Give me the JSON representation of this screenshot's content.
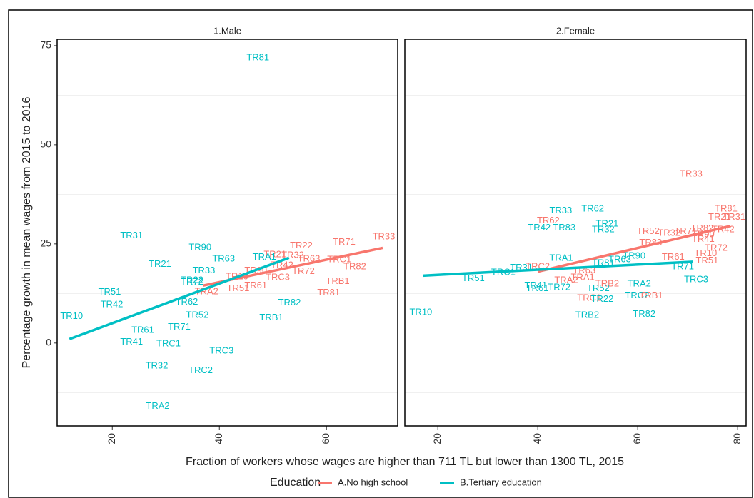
{
  "chart_data": {
    "type": "scatter",
    "ylabel": "Percentage growth in mean wages from 2015 to 2016",
    "xlabel": "Fraction of workers whose wages are higher than 711 TL but lower than 1300 TL, 2015",
    "ylim": [
      -20.9,
      76.6
    ],
    "yticks": [
      0,
      25,
      50,
      75
    ],
    "y_minor_grid": [
      -12.5,
      12.5,
      37.5,
      62.5
    ],
    "legend": {
      "title": "Education",
      "entries": [
        {
          "name": "A.No high school",
          "color": "#F8766D"
        },
        {
          "name": "B.Tertiary education",
          "color": "#00BFC4"
        }
      ]
    },
    "facets": [
      {
        "title": "1.Male",
        "xlim": [
          9.7,
          73.3
        ],
        "xticks": [
          20,
          40,
          60
        ],
        "series": [
          {
            "color": "#F8766D",
            "labels": [
              "TR33",
              "TR71",
              "TR22",
              "TRC1",
              "TR82",
              "TR21",
              "TR32",
              "TR63",
              "TR90",
              "TR42",
              "TR72",
              "TR10",
              "TRC3",
              "TR61",
              "TR51",
              "TRA2",
              "TRB1",
              "TR81"
            ],
            "x": [
              70.7,
              63.3,
              55.3,
              62.4,
              65.3,
              50.4,
              53.7,
              56.7,
              46.8,
              51.7,
              55.7,
              43.3,
              50.9,
              46.8,
              43.5,
              37.6,
              62.1,
              60.4
            ],
            "y": [
              26.8,
              25.4,
              24.5,
              21.0,
              19.2,
              22.3,
              22.1,
              21.2,
              18.2,
              19.6,
              18.0,
              16.7,
              16.5,
              14.4,
              13.7,
              12.9,
              15.5,
              12.6
            ],
            "fit_x": [
              37,
              70.5
            ],
            "fit_y": [
              14.5,
              24
            ]
          },
          {
            "color": "#00BFC4",
            "labels": [
              "TR81",
              "TR31",
              "TR90",
              "TR63",
              "TR21",
              "TR33",
              "TR22",
              "TR72",
              "TRA1",
              "TR51",
              "TR42",
              "TR10",
              "TR62",
              "TR52",
              "TRB1",
              "TR82",
              "TR71",
              "TR61",
              "TR41",
              "TRC1",
              "TRC3",
              "TR32",
              "TRC2",
              "TRA2"
            ],
            "x": [
              47.2,
              23.6,
              36.4,
              40.8,
              28.9,
              37.1,
              34.9,
              34.9,
              48.4,
              19.5,
              19.9,
              12.4,
              33.9,
              35.9,
              49.7,
              53.1,
              32.5,
              25.7,
              23.6,
              30.5,
              40.4,
              28.3,
              36.5,
              28.5
            ],
            "y": [
              71.9,
              27.0,
              24.1,
              21.2,
              19.8,
              18.2,
              15.8,
              15.3,
              21.6,
              12.8,
              9.7,
              6.7,
              10.3,
              7.0,
              6.3,
              10.1,
              4.0,
              3.2,
              0.2,
              -0.2,
              -2.0,
              -5.8,
              -7.0,
              -16.0
            ],
            "fit_x": [
              12,
              53
            ],
            "fit_y": [
              1,
              21.5
            ]
          }
        ]
      },
      {
        "title": "2.Female",
        "xlim": [
          13.4,
          81.7
        ],
        "xticks": [
          20,
          40,
          60,
          80
        ],
        "series": [
          {
            "color": "#F8766D",
            "labels": [
              "TR33",
              "TR81",
              "TR31",
              "TR21",
              "TR42",
              "TR82",
              "TR90",
              "TR71",
              "TR32",
              "TR52",
              "TR41",
              "TR83",
              "TR72",
              "TR10",
              "TR61",
              "TR51",
              "TR62",
              "TRC2",
              "TR63",
              "TRA1",
              "TRA2",
              "TRB2",
              "TRC1",
              "TRB1"
            ],
            "x": [
              70.7,
              77.7,
              79.3,
              76.4,
              77.1,
              72.9,
              73.1,
              69.6,
              66.3,
              62.1,
              73.1,
              62.6,
              75.7,
              73.6,
              67.1,
              73.9,
              42.1,
              40.0,
              49.3,
              49.0,
              45.7,
              53.9,
              50.3,
              62.7
            ],
            "y": [
              42.6,
              33.8,
              31.7,
              31.7,
              28.6,
              28.8,
              27.3,
              28.1,
              27.7,
              28.1,
              26.1,
              25.2,
              23.9,
              22.5,
              21.6,
              20.7,
              30.8,
              19.2,
              18.2,
              16.5,
              15.8,
              14.9,
              11.3,
              11.9
            ],
            "fit_x": [
              40,
              78.5
            ],
            "fit_y": [
              18,
              29.5
            ]
          },
          {
            "color": "#00BFC4",
            "labels": [
              "TR62",
              "TR33",
              "TR21",
              "TR42",
              "TR83",
              "TR32",
              "TRA1",
              "TR90",
              "TR63",
              "TR81",
              "TR71",
              "TR31",
              "TRC1",
              "TR51",
              "TRC3",
              "TRA2",
              "TR41",
              "TR61",
              "TR72",
              "TR52",
              "TR22",
              "TRC2",
              "TRB2",
              "TR82",
              "TR10"
            ],
            "x": [
              51.0,
              44.6,
              53.9,
              40.3,
              45.3,
              53.1,
              44.7,
              59.3,
              56.4,
              53.1,
              69.0,
              36.7,
              33.1,
              27.1,
              71.7,
              60.3,
              39.6,
              39.9,
              44.3,
              52.1,
              52.9,
              59.9,
              49.9,
              61.3,
              16.6
            ],
            "y": [
              33.8,
              33.3,
              30.0,
              29.0,
              29.0,
              28.6,
              21.4,
              21.9,
              21.0,
              20.1,
              19.2,
              18.9,
              17.8,
              16.2,
              16.0,
              14.9,
              14.4,
              13.7,
              14.0,
              13.7,
              11.0,
              11.9,
              7.0,
              7.2,
              7.7
            ],
            "fit_x": [
              17,
              71
            ],
            "fit_y": [
              17,
              20.5
            ]
          }
        ]
      }
    ]
  }
}
